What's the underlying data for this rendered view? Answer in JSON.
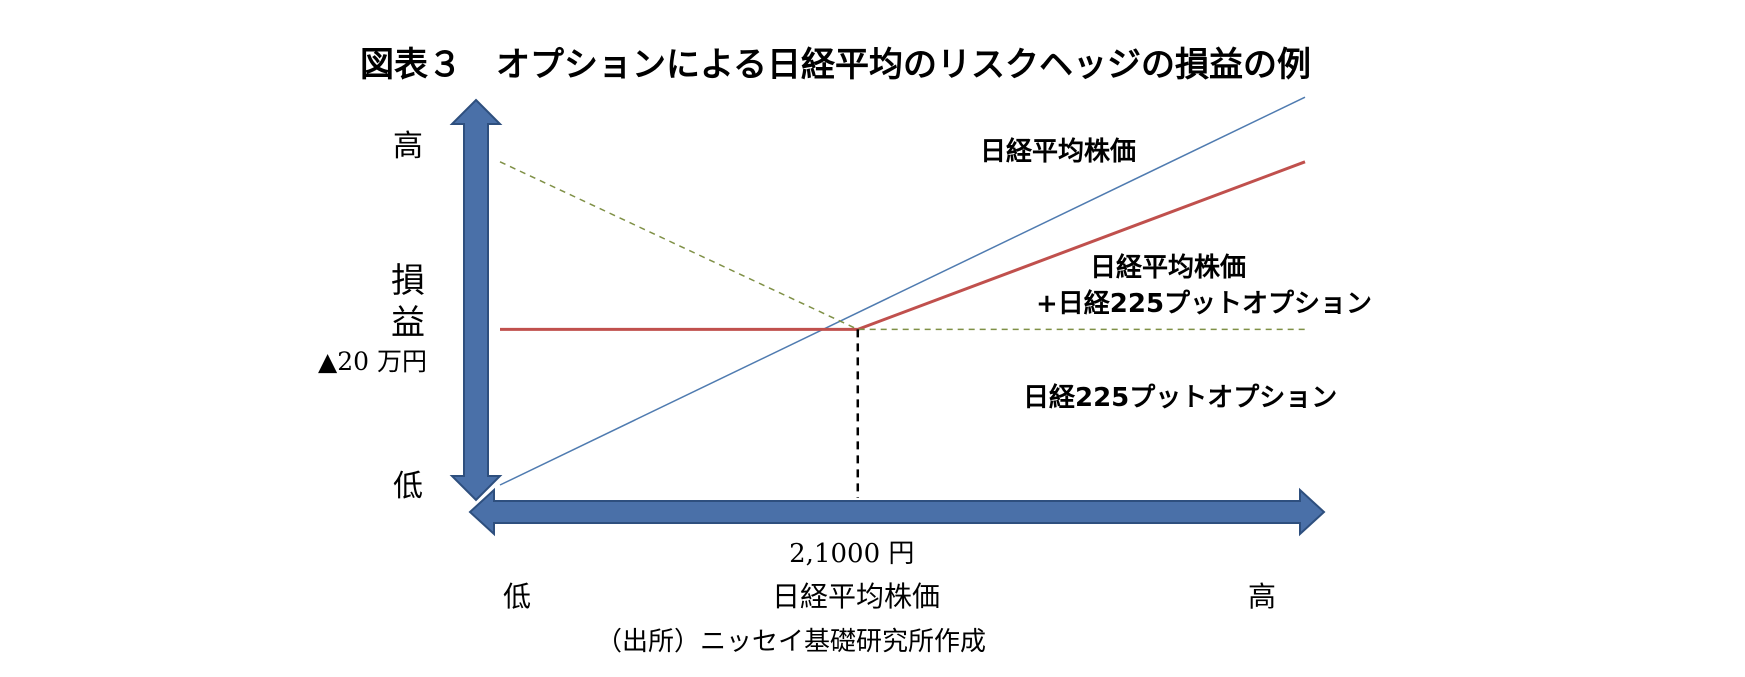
{
  "title": "図表３　オプションによる日経平均のリスクヘッジの損益の例",
  "source_note": "（出所）ニッセイ基礎研究所作成",
  "colors": {
    "axis_arrow": "#4a70a8",
    "axis_arrow_edge": "#2e4f7e",
    "stock_line": "#4f7bb0",
    "hedged_line": "#c0504d",
    "put_line": "#7f9046",
    "guide_line": "#000000"
  },
  "chart_data": {
    "type": "line",
    "title": "図表３　オプションによる日経平均のリスクヘッジの損益の例",
    "xlabel": "日経平均株価",
    "ylabel": "損益",
    "x_axis_ends": {
      "low": "低",
      "high": "高"
    },
    "y_axis_ends": {
      "low": "低",
      "high": "高"
    },
    "x_tick": {
      "label": "2,1000 円",
      "value": 21000
    },
    "y_tick": {
      "label": "▲20 万円",
      "value": -20
    },
    "xlim": [
      17000,
      26000
    ],
    "ylim": [
      -90,
      75
    ],
    "grid": false,
    "legend": "direct labels on lines",
    "series": [
      {
        "name": "日経平均株価",
        "style": "solid",
        "x": [
          17000,
          26000
        ],
        "y": [
          -85,
          77
        ]
      },
      {
        "name": "日経平均株価\n+日経225プットオプション",
        "style": "solid-bold",
        "x": [
          17000,
          21000,
          26000
        ],
        "y": [
          -20,
          -20,
          50
        ]
      },
      {
        "name": "日経225プットオプション",
        "style": "dashed",
        "x": [
          17000,
          21000,
          26000
        ],
        "y": [
          50,
          -20,
          -20
        ]
      }
    ],
    "annotations": [
      {
        "type": "vertical-dashed",
        "x": 21000,
        "from_y": -20,
        "to_y": "axis"
      }
    ]
  }
}
